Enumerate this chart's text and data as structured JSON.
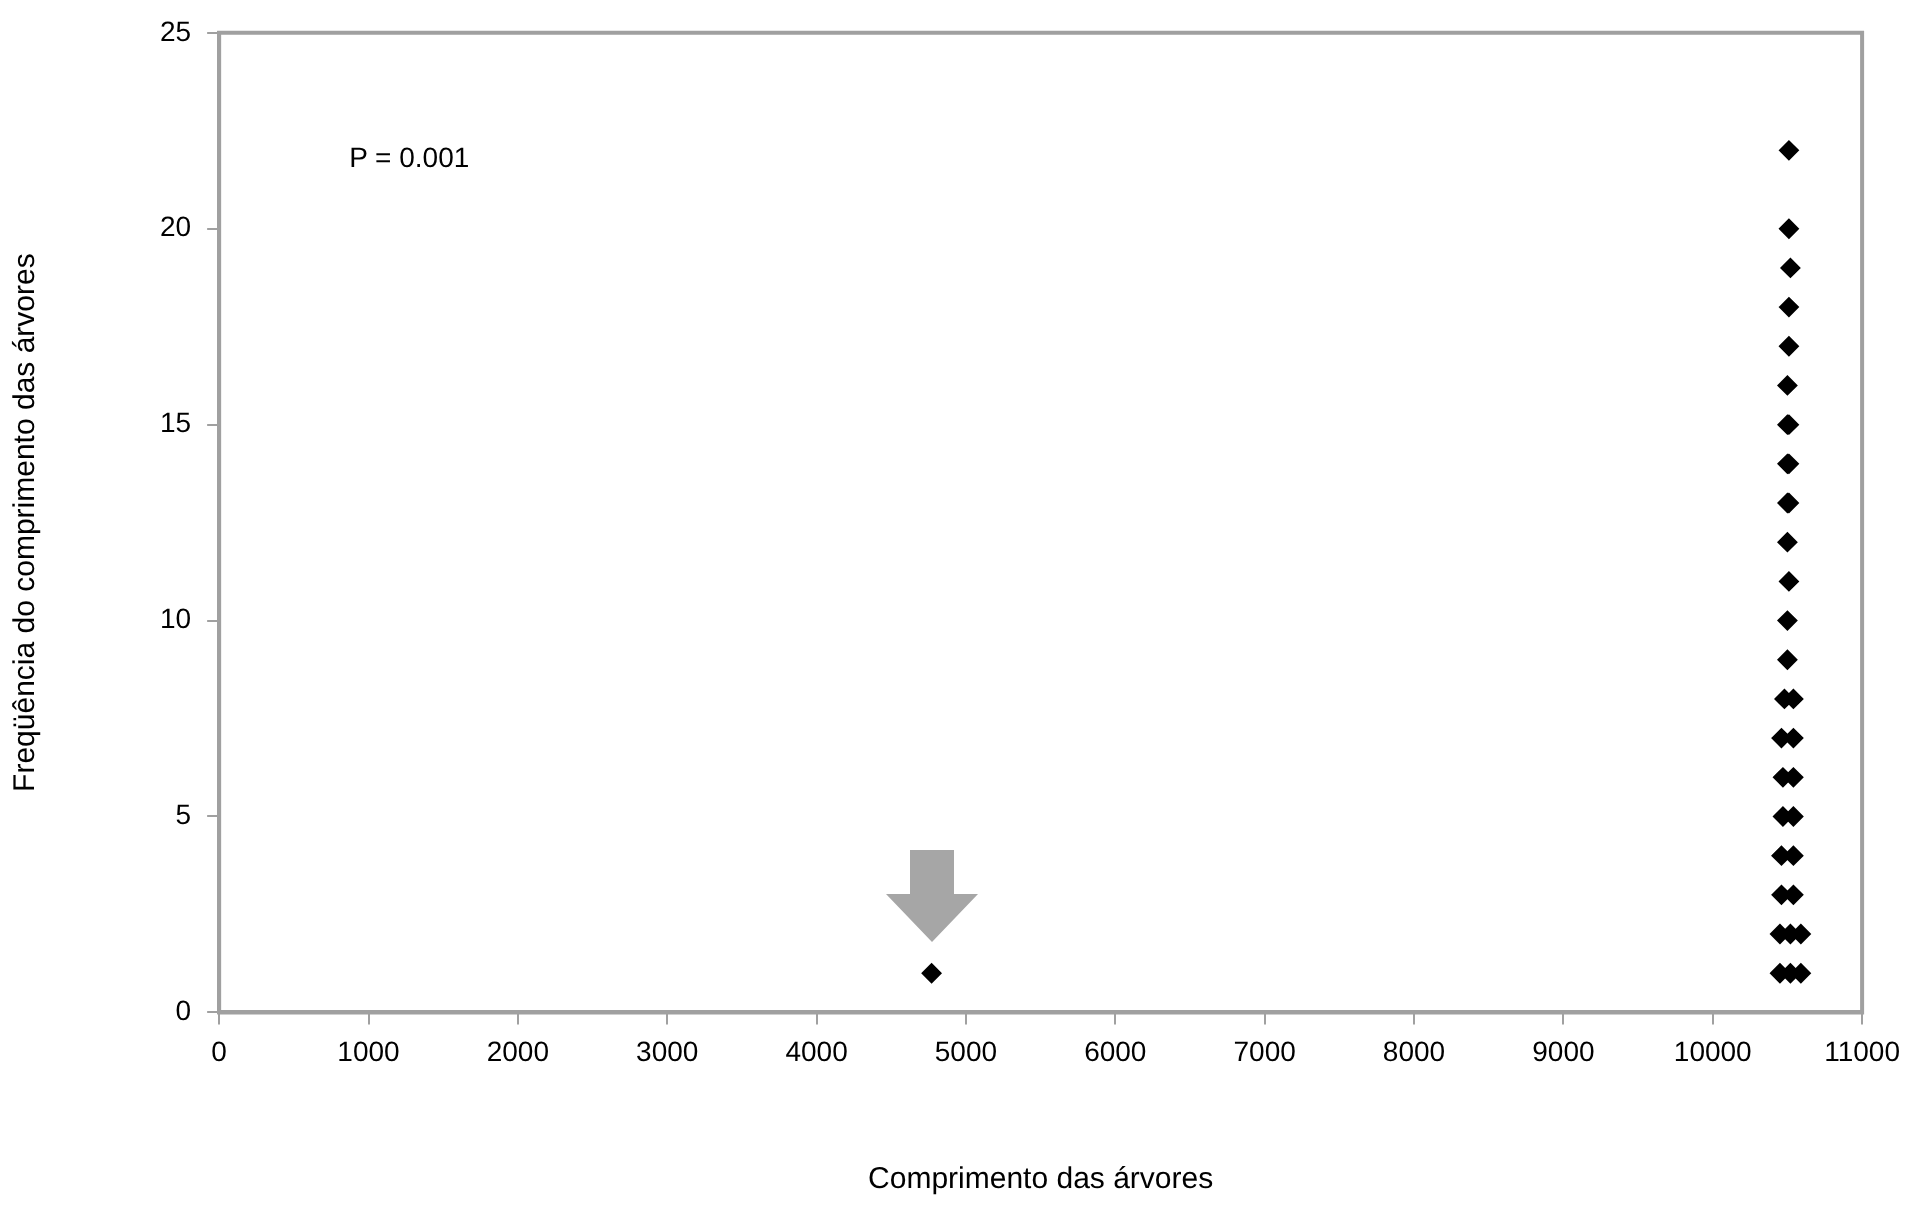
{
  "chart_data": {
    "type": "scatter",
    "xlabel": "Comprimento das árvores",
    "ylabel": "Freqüência do comprimento das árvores",
    "annotations": [
      "P = 0.001"
    ],
    "series": [
      {
        "color": "#000000",
        "x": [
          4770,
          10450,
          10520,
          10590,
          10450,
          10520,
          10590,
          10460,
          10540,
          10460,
          10540,
          10470,
          10540,
          10470,
          10540,
          10460,
          10540,
          10480,
          10540,
          10500,
          10500,
          10510,
          10500,
          10500,
          10510,
          10500,
          10510,
          10500,
          10510,
          10500,
          10510,
          10510,
          10520
        ],
        "values": [
          1,
          1,
          1,
          1,
          2,
          2,
          2,
          3,
          3,
          4,
          4,
          5,
          5,
          6,
          6,
          7,
          7,
          8,
          8,
          9,
          10,
          11,
          12,
          13,
          13,
          14,
          14,
          15,
          15,
          16,
          17,
          18,
          19
        ]
      },
      {
        "color": "#000000",
        "x": [
          10510,
          10510
        ],
        "values": [
          20,
          22
        ]
      }
    ],
    "xlim": [
      0,
      11000
    ],
    "xticks": [
      0,
      1000,
      2000,
      3000,
      4000,
      5000,
      6000,
      7000,
      8000,
      9000,
      10000,
      11000
    ],
    "ylim": [
      0,
      25
    ],
    "yticks": [
      0,
      5,
      10,
      15,
      20,
      25
    ],
    "grid": false,
    "legend": false,
    "marker": "diamond"
  }
}
